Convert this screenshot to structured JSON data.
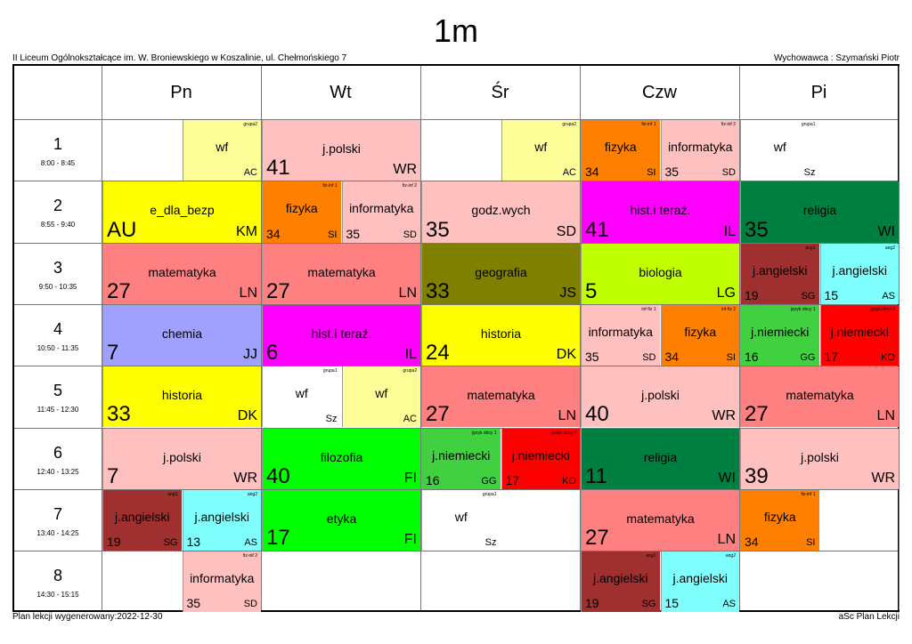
{
  "title": "1m",
  "school": "II Liceum Ogólnokształcące im. W. Broniewskiego w Koszalinie, ul. Chełmońskiego 7",
  "tutor": "Wychowawca : Szymański Piotr",
  "footer_left": "Plan lekcji wygenerowany:2022-12-30",
  "footer_right": "aSc Plan Lekcji",
  "days": [
    "Pn",
    "Wt",
    "Śr",
    "Czw",
    "Pi"
  ],
  "periods": [
    {
      "num": "1",
      "time": "8:00 - 8:45"
    },
    {
      "num": "2",
      "time": "8:55 - 9:40"
    },
    {
      "num": "3",
      "time": "9:50 - 10:35"
    },
    {
      "num": "4",
      "time": "10:50 - 11:35"
    },
    {
      "num": "5",
      "time": "11:45 - 12:30"
    },
    {
      "num": "6",
      "time": "12:40 - 13:25"
    },
    {
      "num": "7",
      "time": "13:40 - 14:25"
    },
    {
      "num": "8",
      "time": "14:30 - 15:15"
    }
  ],
  "lessons": [
    {
      "day": 0,
      "period": 0,
      "half": "right",
      "subject": "wf",
      "room": "",
      "teacher": "AC",
      "group": "grupa2",
      "color": "cream"
    },
    {
      "day": 1,
      "period": 0,
      "half": "full",
      "subject": "j.polski",
      "room": "41",
      "teacher": "WR",
      "group": "",
      "color": "pink"
    },
    {
      "day": 2,
      "period": 0,
      "half": "right",
      "subject": "wf",
      "room": "",
      "teacher": "AC",
      "group": "grupa2",
      "color": "cream"
    },
    {
      "day": 3,
      "period": 0,
      "half": "left",
      "subject": "fizyka",
      "room": "34",
      "teacher": "SI",
      "group": "fiz-inf 1",
      "color": "orange"
    },
    {
      "day": 3,
      "period": 0,
      "half": "right",
      "subject": "informatyka",
      "room": "35",
      "teacher": "SD",
      "group": "fiz-inf 2",
      "color": "pink"
    },
    {
      "day": 4,
      "period": 0,
      "half": "left",
      "subject": "wf",
      "room": "",
      "teacher": "Sz",
      "group": "grupa1",
      "color": "white"
    },
    {
      "day": 0,
      "period": 1,
      "half": "full",
      "subject": "e_dla_bezp",
      "room": "AU",
      "teacher": "KM",
      "group": "",
      "color": "yellow"
    },
    {
      "day": 1,
      "period": 1,
      "half": "left",
      "subject": "fizyka",
      "room": "34",
      "teacher": "SI",
      "group": "fiz-inf 1",
      "color": "orange"
    },
    {
      "day": 1,
      "period": 1,
      "half": "right",
      "subject": "informatyka",
      "room": "35",
      "teacher": "SD",
      "group": "fiz-inf 2",
      "color": "pink"
    },
    {
      "day": 2,
      "period": 1,
      "half": "full",
      "subject": "godz.wych",
      "room": "35",
      "teacher": "SD",
      "group": "",
      "color": "pink"
    },
    {
      "day": 3,
      "period": 1,
      "half": "full",
      "subject": "hist.i teraź.",
      "room": "41",
      "teacher": "IL",
      "group": "",
      "color": "magenta"
    },
    {
      "day": 4,
      "period": 1,
      "half": "full",
      "subject": "religia",
      "room": "35",
      "teacher": "WI",
      "group": "",
      "color": "dkgreen"
    },
    {
      "day": 0,
      "period": 2,
      "half": "full",
      "subject": "matematyka",
      "room": "27",
      "teacher": "LN",
      "group": "",
      "color": "salmon"
    },
    {
      "day": 1,
      "period": 2,
      "half": "full",
      "subject": "matematyka",
      "room": "27",
      "teacher": "LN",
      "group": "",
      "color": "salmon"
    },
    {
      "day": 2,
      "period": 2,
      "half": "full",
      "subject": "geografia",
      "room": "33",
      "teacher": "JS",
      "group": "",
      "color": "olive"
    },
    {
      "day": 3,
      "period": 2,
      "half": "full",
      "subject": "biologia",
      "room": "5",
      "teacher": "LG",
      "group": "",
      "color": "lime"
    },
    {
      "day": 4,
      "period": 2,
      "half": "left",
      "subject": "j.angielski",
      "room": "19",
      "teacher": "SG",
      "group": "ang1",
      "color": "maroon"
    },
    {
      "day": 4,
      "period": 2,
      "half": "right",
      "subject": "j.angielski",
      "room": "15",
      "teacher": "AS",
      "group": "ang2",
      "color": "cyan"
    },
    {
      "day": 0,
      "period": 3,
      "half": "full",
      "subject": "chemia",
      "room": "7",
      "teacher": "JJ",
      "group": "",
      "color": "periwinkle"
    },
    {
      "day": 1,
      "period": 3,
      "half": "full",
      "subject": "hist.i teraź.",
      "room": "6",
      "teacher": "IL",
      "group": "",
      "color": "magenta"
    },
    {
      "day": 2,
      "period": 3,
      "half": "full",
      "subject": "historia",
      "room": "24",
      "teacher": "DK",
      "group": "",
      "color": "yellow"
    },
    {
      "day": 3,
      "period": 3,
      "half": "left",
      "subject": "informatyka",
      "room": "35",
      "teacher": "SD",
      "group": "inf-fiz 1",
      "color": "pink"
    },
    {
      "day": 3,
      "period": 3,
      "half": "right",
      "subject": "fizyka",
      "room": "34",
      "teacher": "SI",
      "group": "inf-fiz 2",
      "color": "orange"
    },
    {
      "day": 4,
      "period": 3,
      "half": "left",
      "subject": "j.niemiecki",
      "room": "16",
      "teacher": "GG",
      "group": "język obcy 1",
      "color": "green"
    },
    {
      "day": 4,
      "period": 3,
      "half": "right",
      "subject": "j.niemiecki",
      "room": "17",
      "teacher": "KO",
      "group": "język obcy 2",
      "color": "red"
    },
    {
      "day": 0,
      "period": 4,
      "half": "full",
      "subject": "historia",
      "room": "33",
      "teacher": "DK",
      "group": "",
      "color": "yellow"
    },
    {
      "day": 1,
      "period": 4,
      "half": "left",
      "subject": "wf",
      "room": "",
      "teacher": "Sz",
      "group": "grupa1",
      "color": "white"
    },
    {
      "day": 1,
      "period": 4,
      "half": "right",
      "subject": "wf",
      "room": "",
      "teacher": "AC",
      "group": "grupa2",
      "color": "cream"
    },
    {
      "day": 2,
      "period": 4,
      "half": "full",
      "subject": "matematyka",
      "room": "27",
      "teacher": "LN",
      "group": "",
      "color": "salmon"
    },
    {
      "day": 3,
      "period": 4,
      "half": "full",
      "subject": "j.polski",
      "room": "40",
      "teacher": "WR",
      "group": "",
      "color": "pink"
    },
    {
      "day": 4,
      "period": 4,
      "half": "full",
      "subject": "matematyka",
      "room": "27",
      "teacher": "LN",
      "group": "",
      "color": "salmon"
    },
    {
      "day": 0,
      "period": 5,
      "half": "full",
      "subject": "j.polski",
      "room": "7",
      "teacher": "WR",
      "group": "",
      "color": "pink"
    },
    {
      "day": 1,
      "period": 5,
      "half": "full",
      "subject": "filozofia",
      "room": "40",
      "teacher": "FI",
      "group": "",
      "color": "brgreen"
    },
    {
      "day": 2,
      "period": 5,
      "half": "left",
      "subject": "j.niemiecki",
      "room": "16",
      "teacher": "GG",
      "group": "język obcy 1",
      "color": "green"
    },
    {
      "day": 2,
      "period": 5,
      "half": "right",
      "subject": "j.niemiecki",
      "room": "17",
      "teacher": "KO",
      "group": "język obcy 2",
      "color": "red"
    },
    {
      "day": 3,
      "period": 5,
      "half": "full",
      "subject": "religia",
      "room": "11",
      "teacher": "WI",
      "group": "",
      "color": "dkgreen"
    },
    {
      "day": 4,
      "period": 5,
      "half": "full",
      "subject": "j.polski",
      "room": "39",
      "teacher": "WR",
      "group": "",
      "color": "pink"
    },
    {
      "day": 0,
      "period": 6,
      "half": "left",
      "subject": "j.angielski",
      "room": "19",
      "teacher": "SG",
      "group": "ang1",
      "color": "maroon"
    },
    {
      "day": 0,
      "period": 6,
      "half": "right",
      "subject": "j.angielski",
      "room": "13",
      "teacher": "AS",
      "group": "ang2",
      "color": "cyan"
    },
    {
      "day": 1,
      "period": 6,
      "half": "full",
      "subject": "etyka",
      "room": "17",
      "teacher": "FI",
      "group": "",
      "color": "brgreen"
    },
    {
      "day": 2,
      "period": 6,
      "half": "left",
      "subject": "wf",
      "room": "",
      "teacher": "Sz",
      "group": "grupa1",
      "color": "white"
    },
    {
      "day": 3,
      "period": 6,
      "half": "full",
      "subject": "matematyka",
      "room": "27",
      "teacher": "LN",
      "group": "",
      "color": "salmon"
    },
    {
      "day": 4,
      "period": 6,
      "half": "left",
      "subject": "fizyka",
      "room": "34",
      "teacher": "SI",
      "group": "fiz-inf 1",
      "color": "orange"
    },
    {
      "day": 0,
      "period": 7,
      "half": "right",
      "subject": "informatyka",
      "room": "35",
      "teacher": "SD",
      "group": "fiz-inf 2",
      "color": "pink"
    },
    {
      "day": 3,
      "period": 7,
      "half": "left",
      "subject": "j.angielski",
      "room": "19",
      "teacher": "SG",
      "group": "ang1",
      "color": "maroon"
    },
    {
      "day": 3,
      "period": 7,
      "half": "right",
      "subject": "j.angielski",
      "room": "15",
      "teacher": "AS",
      "group": "ang2",
      "color": "cyan"
    }
  ]
}
